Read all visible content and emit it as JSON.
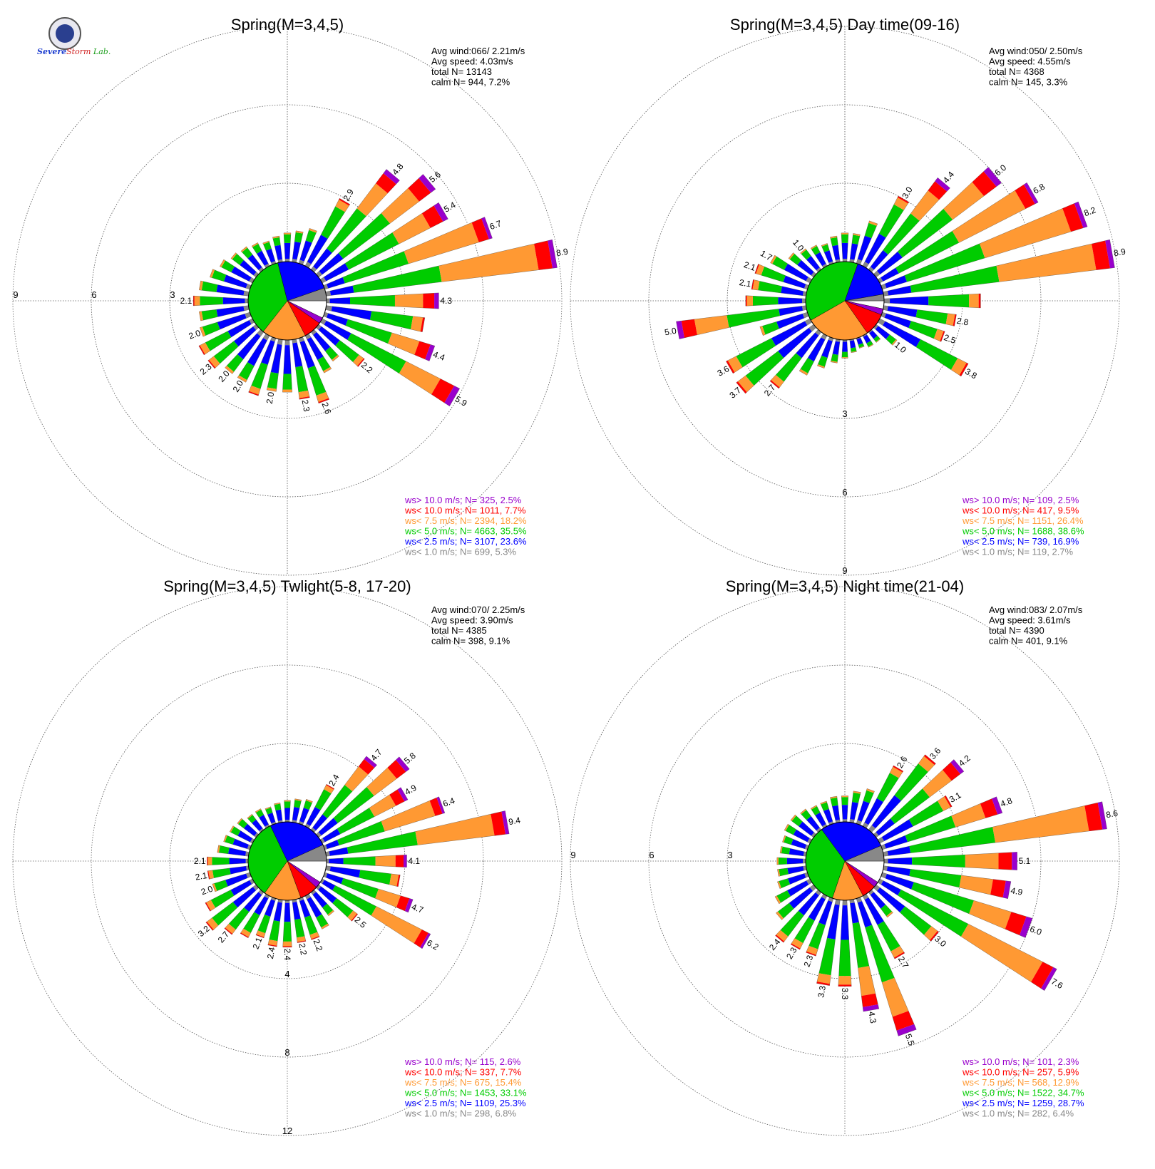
{
  "logo": {
    "word1": "Severe",
    "word2": "Storm",
    "word3": "Lab."
  },
  "bin_colors": {
    "calm": "#ffffff",
    "lt1": "#888888",
    "lt2_5": "#0000ff",
    "lt5": "#00cc00",
    "lt7_5": "#ff9933",
    "lt10": "#ff0000",
    "gt10": "#9900cc"
  },
  "chart_data": [
    {
      "type": "wind_rose",
      "title": "Spring(M=3,4,5)",
      "stats": [
        "Avg wind:066/ 2.21m/s",
        "Avg speed: 4.03m/s",
        "total N=      13143",
        "calm N=    944,   7.2%"
      ],
      "ring_ticks": [
        "3",
        "6",
        "9"
      ],
      "ring_values": [
        3,
        6,
        9
      ],
      "legend": [
        {
          "text": "ws> 10.0 m/s; N=   325,  2.5%",
          "bin": "gt10"
        },
        {
          "text": "ws< 10.0 m/s; N=  1011,  7.7%",
          "bin": "lt10"
        },
        {
          "text": "ws<  7.5 m/s; N=  2394, 18.2%",
          "bin": "lt7_5"
        },
        {
          "text": "ws<  5.0 m/s; N=  4663, 35.5%",
          "bin": "lt5"
        },
        {
          "text": "ws<  2.5 m/s; N=  3107, 23.6%",
          "bin": "lt2_5"
        },
        {
          "text": "ws<  1.0 m/s; N=   699,  5.3%",
          "bin": "lt1"
        }
      ],
      "sector_deg": 10,
      "pie_pct": {
        "calm": 7.2,
        "lt1": 5.3,
        "lt2_5": 23.6,
        "lt5": 35.5,
        "lt7_5": 18.2,
        "lt10": 7.7,
        "gt10": 2.5
      },
      "directions_deg": [
        0,
        10,
        20,
        30,
        40,
        50,
        60,
        70,
        80,
        90,
        100,
        110,
        120,
        130,
        140,
        150,
        160,
        170,
        180,
        190,
        200,
        210,
        220,
        230,
        240,
        250,
        260,
        270,
        280,
        290,
        300,
        310,
        320,
        330,
        340,
        350
      ],
      "total_pct": [
        1.1,
        1.2,
        1.4,
        2.9,
        4.8,
        5.6,
        5.4,
        6.7,
        8.9,
        4.3,
        3.8,
        4.4,
        5.9,
        2.2,
        1.4,
        1.6,
        2.6,
        2.3,
        2.0,
        2.0,
        2.3,
        2.0,
        2.0,
        2.3,
        2.3,
        2.0,
        1.9,
        2.1,
        1.9,
        1.6,
        1.4,
        1.2,
        1.1,
        1.0,
        0.9,
        1.0
      ],
      "labeled": [
        30,
        40,
        50,
        60,
        70,
        80,
        90,
        110,
        120,
        130,
        160,
        170,
        190,
        210,
        220,
        230,
        250,
        270
      ]
    },
    {
      "type": "wind_rose",
      "title": "Spring(M=3,4,5) Day time(09-16)",
      "stats": [
        "Avg wind:050/ 2.50m/s",
        "Avg speed: 4.55m/s",
        "total N=       4368",
        "calm N=    145,   3.3%"
      ],
      "ring_ticks": [
        "3",
        "6",
        "9"
      ],
      "ring_values": [
        3,
        6,
        9
      ],
      "legend": [
        {
          "text": "ws> 10.0 m/s; N=   109,  2.5%",
          "bin": "gt10"
        },
        {
          "text": "ws< 10.0 m/s; N=   417,  9.5%",
          "bin": "lt10"
        },
        {
          "text": "ws<  7.5 m/s; N=  1151, 26.4%",
          "bin": "lt7_5"
        },
        {
          "text": "ws<  5.0 m/s; N=  1688, 38.6%",
          "bin": "lt5"
        },
        {
          "text": "ws<  2.5 m/s; N=   739, 16.9%",
          "bin": "lt2_5"
        },
        {
          "text": "ws<  1.0 m/s; N=   119,  2.7%",
          "bin": "lt1"
        }
      ],
      "sector_deg": 10,
      "pie_pct": {
        "calm": 3.3,
        "lt1": 2.7,
        "lt2_5": 16.9,
        "lt5": 38.6,
        "lt7_5": 26.4,
        "lt10": 9.5,
        "gt10": 2.5
      },
      "directions_deg": [
        0,
        10,
        20,
        30,
        40,
        50,
        60,
        70,
        80,
        90,
        100,
        110,
        120,
        130,
        140,
        150,
        160,
        170,
        180,
        190,
        200,
        210,
        220,
        230,
        240,
        250,
        260,
        270,
        280,
        290,
        300,
        310,
        320,
        330,
        340,
        350
      ],
      "total_pct": [
        1.1,
        1.1,
        1.7,
        3.0,
        4.4,
        6.0,
        6.8,
        8.2,
        8.9,
        3.7,
        2.8,
        2.5,
        3.8,
        1.0,
        0.5,
        0.5,
        0.4,
        0.5,
        0.7,
        0.9,
        1.2,
        1.7,
        2.7,
        3.7,
        3.6,
        1.9,
        5.0,
        2.3,
        2.1,
        2.1,
        1.7,
        1.2,
        1.0,
        0.9,
        0.8,
        1.0
      ],
      "labeled": [
        30,
        40,
        50,
        60,
        70,
        80,
        100,
        110,
        120,
        130,
        220,
        230,
        240,
        260,
        280,
        290,
        300,
        320
      ]
    },
    {
      "type": "wind_rose",
      "title": "Spring(M=3,4,5) Twlight(5-8, 17-20)",
      "stats": [
        "Avg wind:070/ 2.25m/s",
        "Avg speed: 3.90m/s",
        "total N=       4385",
        "calm N=    398,   9.1%"
      ],
      "ring_ticks": [
        "4",
        "8",
        "12"
      ],
      "ring_values": [
        4,
        8,
        12
      ],
      "legend": [
        {
          "text": "ws> 10.0 m/s; N=   115,  2.6%",
          "bin": "gt10"
        },
        {
          "text": "ws< 10.0 m/s; N=   337,  7.7%",
          "bin": "lt10"
        },
        {
          "text": "ws<  7.5 m/s; N=   675, 15.4%",
          "bin": "lt7_5"
        },
        {
          "text": "ws<  5.0 m/s; N=  1453, 33.1%",
          "bin": "lt5"
        },
        {
          "text": "ws<  2.5 m/s; N=  1109, 25.3%",
          "bin": "lt2_5"
        },
        {
          "text": "ws<  1.0 m/s; N=   298,  6.8%",
          "bin": "lt1"
        }
      ],
      "sector_deg": 10,
      "pie_pct": {
        "calm": 9.1,
        "lt1": 6.8,
        "lt2_5": 25.3,
        "lt5": 33.1,
        "lt7_5": 15.4,
        "lt10": 7.7,
        "gt10": 2.6
      },
      "directions_deg": [
        0,
        10,
        20,
        30,
        40,
        50,
        60,
        70,
        80,
        90,
        100,
        110,
        120,
        130,
        140,
        150,
        160,
        170,
        180,
        190,
        200,
        210,
        220,
        230,
        240,
        250,
        260,
        270,
        280,
        290,
        300,
        310,
        320,
        330,
        340,
        350
      ],
      "total_pct": [
        1.1,
        1.2,
        1.3,
        2.4,
        4.7,
        5.8,
        4.9,
        6.4,
        9.4,
        4.1,
        3.8,
        4.7,
        6.2,
        2.5,
        1.5,
        1.9,
        2.2,
        2.2,
        2.4,
        2.4,
        2.1,
        2.4,
        2.7,
        3.2,
        2.7,
        2.0,
        2.1,
        2.1,
        1.6,
        1.4,
        1.3,
        1.2,
        1.0,
        1.0,
        0.9,
        1.0
      ],
      "labeled": [
        30,
        40,
        50,
        60,
        70,
        80,
        90,
        110,
        120,
        130,
        160,
        170,
        180,
        190,
        200,
        220,
        230,
        250,
        260,
        270
      ]
    },
    {
      "type": "wind_rose",
      "title": "Spring(M=3,4,5) Night time(21-04)",
      "stats": [
        "Avg wind:083/ 2.07m/s",
        "Avg speed: 3.61m/s",
        "total N=       4390",
        "calm N=    401,   9.1%"
      ],
      "ring_ticks": [
        "3",
        "6",
        "9"
      ],
      "ring_values": [
        3,
        6,
        9
      ],
      "legend": [
        {
          "text": "ws> 10.0 m/s; N=   101,  2.3%",
          "bin": "gt10"
        },
        {
          "text": "ws< 10.0 m/s; N=   257,  5.9%",
          "bin": "lt10"
        },
        {
          "text": "ws<  7.5 m/s; N=   568, 12.9%",
          "bin": "lt7_5"
        },
        {
          "text": "ws<  5.0 m/s; N=  1522, 34.7%",
          "bin": "lt5"
        },
        {
          "text": "ws<  2.5 m/s; N=  1259, 28.7%",
          "bin": "lt2_5"
        },
        {
          "text": "ws<  1.0 m/s; N=   282,  6.4%",
          "bin": "lt1"
        }
      ],
      "sector_deg": 10,
      "pie_pct": {
        "calm": 9.1,
        "lt1": 6.4,
        "lt2_5": 28.7,
        "lt5": 34.7,
        "lt7_5": 12.9,
        "lt10": 5.9,
        "gt10": 2.3
      },
      "directions_deg": [
        0,
        10,
        20,
        30,
        40,
        50,
        60,
        70,
        80,
        90,
        100,
        110,
        120,
        130,
        140,
        150,
        160,
        170,
        180,
        190,
        200,
        210,
        220,
        230,
        240,
        250,
        260,
        270,
        280,
        290,
        300,
        310,
        320,
        330,
        340,
        350
      ],
      "total_pct": [
        1.0,
        1.2,
        1.4,
        2.6,
        3.6,
        4.2,
        3.1,
        4.8,
        8.6,
        5.1,
        4.9,
        6.0,
        7.6,
        3.0,
        1.2,
        2.7,
        5.5,
        4.3,
        3.3,
        3.3,
        2.3,
        2.3,
        2.4,
        1.8,
        1.5,
        1.2,
        1.1,
        1.1,
        1.0,
        1.0,
        1.1,
        1.1,
        1.0,
        0.9,
        0.9,
        1.0
      ],
      "labeled": [
        30,
        40,
        50,
        60,
        70,
        80,
        90,
        100,
        110,
        120,
        130,
        150,
        160,
        170,
        180,
        190,
        200,
        210,
        220
      ]
    }
  ]
}
